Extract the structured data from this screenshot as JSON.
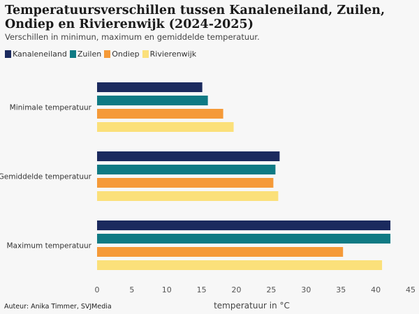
{
  "chart_data": {
    "type": "bar",
    "orientation": "horizontal",
    "title": "Temperatuursverschillen tussen Kanaleneiland, Zuilen, Ondiep en Rivierenwijk (2024-2025)",
    "subtitle": "Verschillen in minimun, maximum en gemiddelde temperatuur.",
    "categories": [
      "Minimale temperatuur",
      "Gemiddelde temperatuur",
      "Maximum temperatuur"
    ],
    "series": [
      {
        "name": "Kanaleneiland",
        "color": "#1b2a5e",
        "values": [
          15.1,
          26.2,
          42.1
        ]
      },
      {
        "name": "Zuilen",
        "color": "#0f7a84",
        "values": [
          15.9,
          25.6,
          42.1
        ]
      },
      {
        "name": "Ondiep",
        "color": "#f59a38",
        "values": [
          18.1,
          25.3,
          35.3
        ]
      },
      {
        "name": "Rivierenwijk",
        "color": "#fbe07a",
        "values": [
          19.6,
          26.0,
          40.9
        ]
      }
    ],
    "xlabel": "temperatuur in °C",
    "ylabel": "",
    "xlim": [
      0,
      45
    ],
    "xticks": [
      0,
      5,
      10,
      15,
      20,
      25,
      30,
      35,
      40,
      45
    ],
    "legend": "top-left",
    "grid": false
  },
  "footer": {
    "credit": "Auteur: Anika Timmer, SVJMedia"
  }
}
